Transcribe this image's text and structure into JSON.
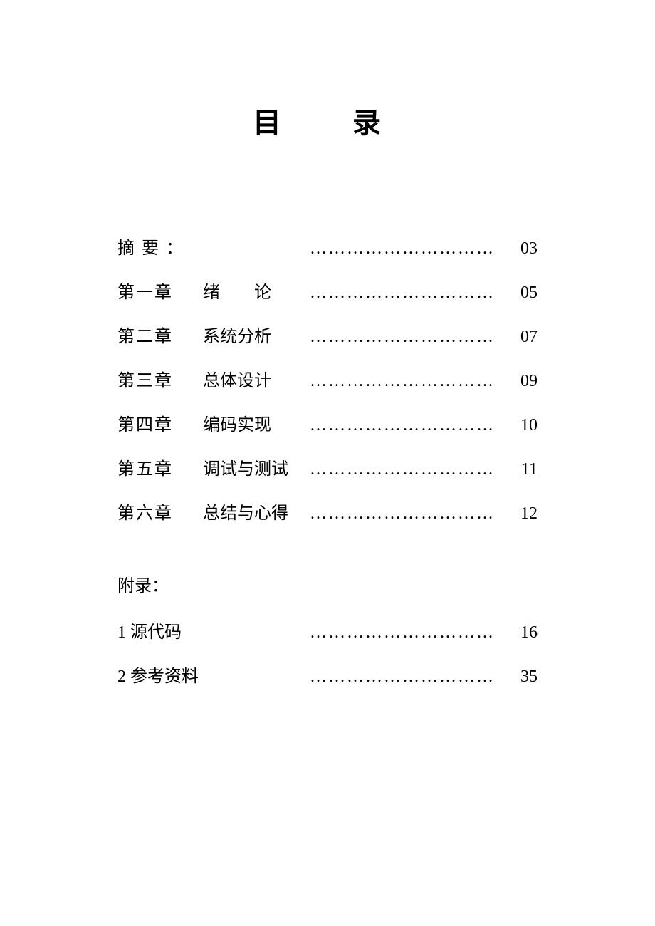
{
  "title": "目　录",
  "leader_char": "…………………………",
  "entries": [
    {
      "chapter": "摘 要 ：",
      "subtitle": "",
      "page": "03",
      "chapter_spaced": false,
      "subtitle_spaced": false
    },
    {
      "chapter": "第一章",
      "subtitle": "绪　　论",
      "page": "05",
      "chapter_spaced": false,
      "subtitle_spaced": false
    },
    {
      "chapter": "第二章",
      "subtitle": "系统分析",
      "page": "07",
      "chapter_spaced": false,
      "subtitle_spaced": false
    },
    {
      "chapter": "第三章",
      "subtitle": "总体设计",
      "page": "09",
      "chapter_spaced": false,
      "subtitle_spaced": false
    },
    {
      "chapter": "第四章",
      "subtitle": "编码实现",
      "page": "10",
      "chapter_spaced": false,
      "subtitle_spaced": false
    },
    {
      "chapter": "第五章",
      "subtitle": "调试与测试",
      "page": "11",
      "chapter_spaced": false,
      "subtitle_spaced": false
    },
    {
      "chapter": "第六章",
      "subtitle": "总结与心得",
      "page": "12",
      "chapter_spaced": false,
      "subtitle_spaced": false
    }
  ],
  "appendix": {
    "heading": "附录：",
    "items": [
      {
        "label": "1 源代码",
        "page": "16"
      },
      {
        "label": "2 参考资料",
        "page": "35"
      }
    ]
  },
  "colors": {
    "background": "#ffffff",
    "text": "#000000"
  },
  "typography": {
    "title_fontsize": 40,
    "body_fontsize": 24,
    "font_family": "SimSun"
  }
}
